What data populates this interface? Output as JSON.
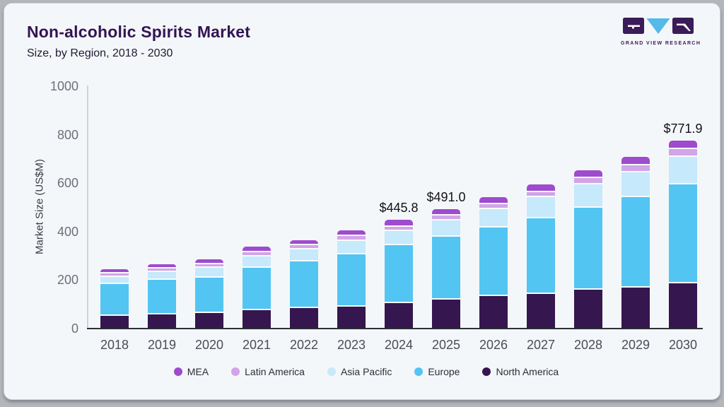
{
  "header": {
    "title": "Non-alcoholic Spirits Market",
    "subtitle": "Size, by Region, 2018 - 2030"
  },
  "logo": {
    "wordmark": "GRAND VIEW RESEARCH",
    "dark_color": "#3b1b58",
    "blue_color": "#55b9e9"
  },
  "chart_data": {
    "type": "bar",
    "stacked": true,
    "title": "Non-alcoholic Spirits Market Size, by Region, 2018 - 2030",
    "xlabel": "",
    "ylabel": "Market Size (US$M)",
    "ylim": [
      0,
      1000
    ],
    "yticks": [
      0,
      200,
      400,
      600,
      800,
      1000
    ],
    "grid": false,
    "legend_position": "bottom",
    "categories": [
      "2018",
      "2019",
      "2020",
      "2021",
      "2022",
      "2023",
      "2024",
      "2025",
      "2026",
      "2027",
      "2028",
      "2029",
      "2030"
    ],
    "series": [
      {
        "name": "North America",
        "color": "#35164f",
        "values": [
          55,
          61,
          68,
          78,
          87,
          92,
          109,
          122,
          137,
          146,
          163,
          173,
          189
        ]
      },
      {
        "name": "Europe",
        "color": "#52c5f2",
        "values": [
          131,
          142,
          146,
          177,
          192,
          217,
          238,
          259,
          282,
          312,
          337,
          372,
          410
        ]
      },
      {
        "name": "Asia Pacific",
        "color": "#c6e9fb",
        "values": [
          31,
          34,
          39,
          46,
          50,
          56,
          58,
          68,
          77,
          87,
          97,
          102,
          112
        ]
      },
      {
        "name": "Latin America",
        "color": "#d2a4e8",
        "values": [
          13,
          14,
          16,
          18,
          18,
          19,
          19,
          20,
          21,
          22,
          27,
          30,
          32
        ]
      },
      {
        "name": "MEA",
        "color": "#9e4bce",
        "values": [
          11,
          12,
          13,
          16,
          15,
          18,
          21.8,
          22,
          22,
          24,
          27,
          28,
          28.9
        ]
      }
    ],
    "totals_shown": [
      {
        "category": "2024",
        "label": "$445.8",
        "value": 445.8
      },
      {
        "category": "2025",
        "label": "$491.0",
        "value": 491.0
      },
      {
        "category": "2030",
        "label": "$771.9",
        "value": 771.9
      }
    ],
    "legend": [
      {
        "label": "MEA",
        "color": "#9e4bce"
      },
      {
        "label": "Latin America",
        "color": "#d2a4e8"
      },
      {
        "label": "Asia Pacific",
        "color": "#c6e9fb"
      },
      {
        "label": "Europe",
        "color": "#52c5f2"
      },
      {
        "label": "North America",
        "color": "#35164f"
      }
    ]
  }
}
